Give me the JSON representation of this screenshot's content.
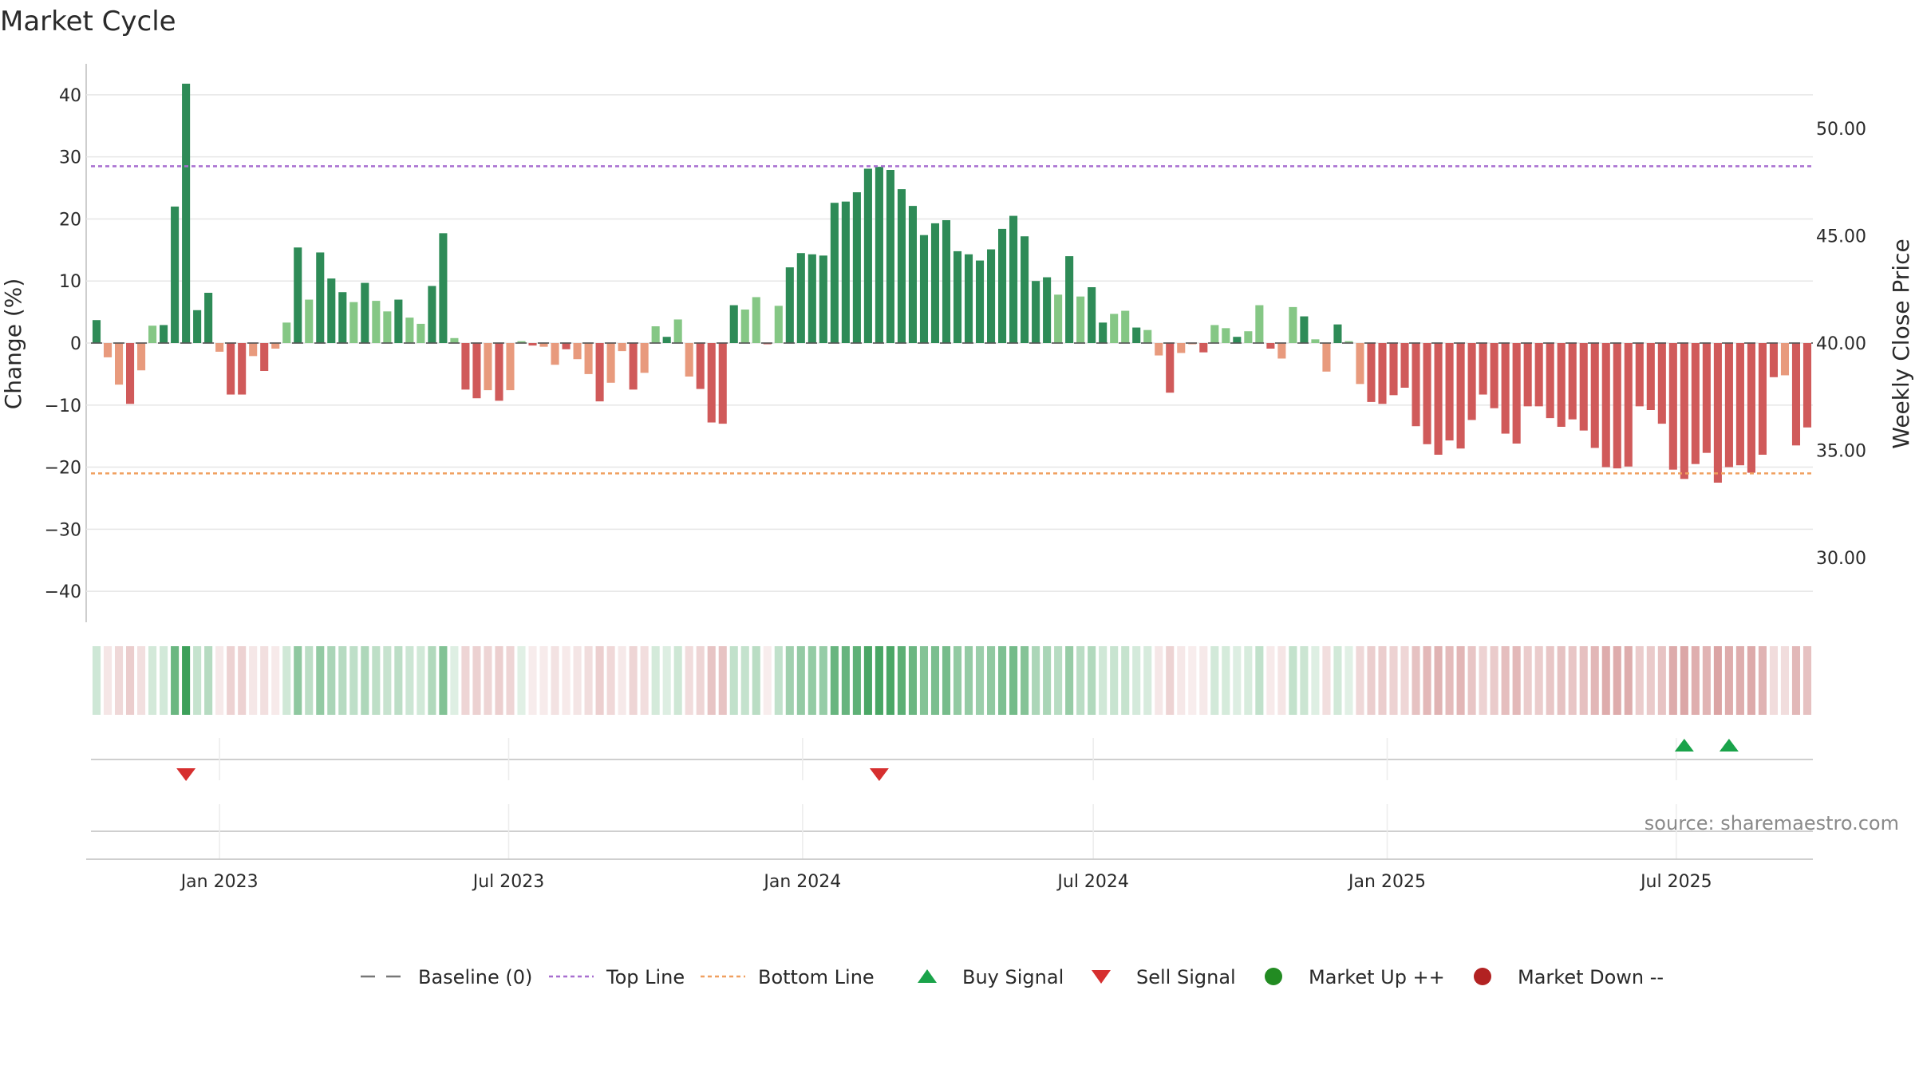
{
  "chart_data": {
    "type": "bar",
    "title": "Market Cycle",
    "ylabel": "Change (%)",
    "y2label": "Weekly Close Price",
    "ylim": [
      -45,
      45
    ],
    "y_ticks": [
      40,
      30,
      20,
      10,
      0,
      -10,
      -20,
      -30,
      -40
    ],
    "y_tick_labels": [
      "40",
      "30",
      "20",
      "10",
      "0",
      "−10",
      "−20",
      "−30",
      "−40"
    ],
    "y2_ticks": [
      50,
      45,
      40,
      35,
      30
    ],
    "y2_tick_labels": [
      "50.00",
      "45.00",
      "40.00",
      "35.00",
      "30.00"
    ],
    "y2lim": [
      27,
      53
    ],
    "x_ticks": [
      {
        "date": "2023-01-01",
        "label": "Jan 2023"
      },
      {
        "date": "2023-07-01",
        "label": "Jul 2023"
      },
      {
        "date": "2024-01-01",
        "label": "Jan 2024"
      },
      {
        "date": "2024-07-01",
        "label": "Jul 2024"
      },
      {
        "date": "2025-01-01",
        "label": "Jan 2025"
      },
      {
        "date": "2025-07-01",
        "label": "Jul 2025"
      }
    ],
    "first_week": "2022-10-16",
    "top_line": 28.5,
    "bottom_line": -21,
    "series": [
      {
        "name": "Change (%)",
        "values": [
          3.7,
          -2.3,
          -6.7,
          -9.8,
          -4.4,
          2.8,
          2.9,
          22.0,
          41.8,
          5.3,
          8.1,
          -1.4,
          -8.3,
          -8.3,
          -2.1,
          -4.5,
          -0.9,
          3.3,
          15.4,
          7.0,
          14.6,
          10.4,
          8.2,
          6.6,
          9.7,
          6.8,
          5.1,
          7.0,
          4.1,
          3.1,
          9.2,
          17.7,
          0.8,
          -7.5,
          -8.9,
          -7.6,
          -9.3,
          -7.6,
          0.3,
          -0.4,
          -0.6,
          -3.5,
          -1.0,
          -2.6,
          -5.0,
          -9.4,
          -6.4,
          -1.3,
          -7.5,
          -4.8,
          2.7,
          1.0,
          3.8,
          -5.4,
          -7.4,
          -12.8,
          -13.0,
          6.1,
          5.4,
          7.4,
          -0.2,
          6.0,
          12.2,
          14.5,
          14.3,
          14.1,
          22.6,
          22.8,
          24.3,
          28.1,
          28.4,
          27.9,
          24.8,
          22.1,
          17.4,
          19.3,
          19.8,
          14.8,
          14.3,
          13.3,
          15.1,
          18.4,
          20.5,
          17.2,
          10.0,
          10.6,
          7.8,
          14.0,
          7.5,
          9.0,
          3.3,
          4.7,
          5.2,
          2.5,
          2.1,
          -2.0,
          -8.0,
          -1.6,
          -0.2,
          -1.5,
          2.9,
          2.4,
          1.0,
          1.9,
          6.1,
          -0.9,
          -2.5,
          5.8,
          4.3,
          0.6,
          -4.6,
          3.0,
          0.3,
          -6.6,
          -9.5,
          -9.8,
          -8.4,
          -7.2,
          -13.4,
          -16.3,
          -18.0,
          -15.7,
          -17.0,
          -12.4,
          -8.3,
          -10.5,
          -14.6,
          -16.2,
          -10.2,
          -10.2,
          -12.1,
          -13.5,
          -12.3,
          -14.1,
          -16.9,
          -20.0,
          -20.2,
          -19.9,
          -10.2,
          -10.8,
          -13.0,
          -20.4,
          -21.9,
          -19.5,
          -17.7,
          -22.5,
          -20.0,
          -19.7,
          -20.9,
          -18.0,
          -5.5,
          -5.2,
          -16.5,
          -13.6
        ]
      }
    ],
    "strong_threshold": 8,
    "colors": {
      "up_strong": "#2e8b57",
      "up_weak": "#85c785",
      "down_strong": "#d05a5a",
      "down_weak": "#e89a7d",
      "top_line": "#a86fd0",
      "bottom_line": "#f0a060",
      "buy": "#1aa34a",
      "sell": "#d62f2f",
      "market_up": "#228b22",
      "market_down": "#b22222",
      "strip_up": "#3da05a",
      "strip_down": "#d08a8a"
    },
    "buy_signals": [
      "2025-07-06",
      "2025-08-03"
    ],
    "sell_signals": [
      "2022-12-11",
      "2024-02-18"
    ],
    "legend": [
      {
        "label": "Baseline (0)",
        "kind": "dash",
        "color": "#777777"
      },
      {
        "label": "Top Line",
        "kind": "dot",
        "color": "#a86fd0"
      },
      {
        "label": "Bottom Line",
        "kind": "dot",
        "color": "#f0a060"
      },
      {
        "label": "Buy Signal",
        "kind": "tri-up",
        "color": "#1aa34a"
      },
      {
        "label": "Sell Signal",
        "kind": "tri-down",
        "color": "#d62f2f"
      },
      {
        "label": "Market Up ++",
        "kind": "circle",
        "color": "#228b22"
      },
      {
        "label": "Market Down --",
        "kind": "circle",
        "color": "#b22222"
      }
    ],
    "source": "source: sharemaestro.com"
  }
}
